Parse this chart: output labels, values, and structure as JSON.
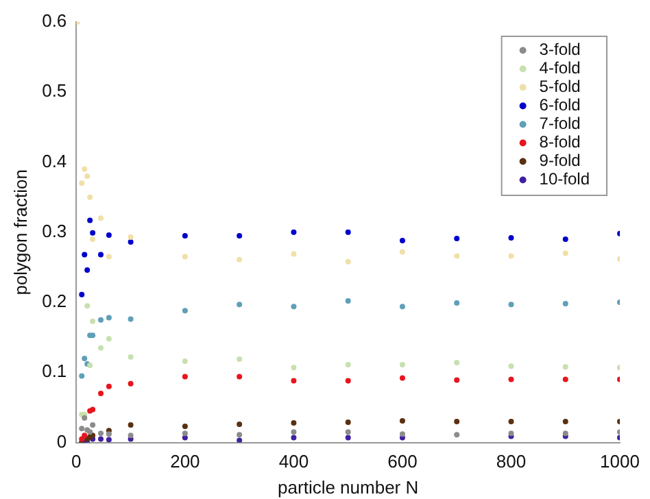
{
  "chart_data": {
    "type": "scatter",
    "xlabel": "particle number N",
    "ylabel": "polygon fraction",
    "x": [
      10,
      15,
      20,
      25,
      30,
      45,
      60,
      100,
      200,
      300,
      400,
      500,
      600,
      700,
      800,
      900,
      1000
    ],
    "series": [
      {
        "name": "3-fold",
        "color": "#8c8c8c",
        "values": [
          0.02,
          0.035,
          0.018,
          0.015,
          0.025,
          0.013,
          0.012,
          0.01,
          0.013,
          0.011,
          0.015,
          0.015,
          0.012,
          0.011,
          0.013,
          0.013,
          0.015
        ]
      },
      {
        "name": "4-fold",
        "color": "#c8e0b0",
        "values": [
          0.04,
          0.04,
          0.195,
          0.11,
          0.173,
          0.135,
          0.148,
          0.122,
          0.116,
          0.119,
          0.107,
          0.111,
          0.111,
          0.114,
          0.109,
          0.108,
          0.107
        ]
      },
      {
        "name": "5-fold",
        "color": "#f0e0a8",
        "x": [
          2,
          10,
          15,
          20,
          25,
          30,
          45,
          60,
          100,
          200,
          300,
          400,
          500,
          600,
          700,
          800,
          900,
          1000
        ],
        "values": [
          0.6,
          0.37,
          0.39,
          0.38,
          0.35,
          0.29,
          0.32,
          0.265,
          0.293,
          0.265,
          0.261,
          0.269,
          0.258,
          0.272,
          0.266,
          0.266,
          0.27,
          0.262
        ]
      },
      {
        "name": "6-fold",
        "color": "#0000cc",
        "values": [
          0.211,
          0.268,
          0.246,
          0.317,
          0.299,
          0.268,
          0.296,
          0.286,
          0.295,
          0.295,
          0.3,
          0.3,
          0.288,
          0.291,
          0.292,
          0.29,
          0.298
        ]
      },
      {
        "name": "7-fold",
        "color": "#5f9fb8",
        "values": [
          0.095,
          0.12,
          0.112,
          0.153,
          0.153,
          0.175,
          0.178,
          0.176,
          0.188,
          0.197,
          0.194,
          0.202,
          0.194,
          0.199,
          0.197,
          0.198,
          0.2
        ]
      },
      {
        "name": "8-fold",
        "color": "#e8141e",
        "values": [
          0.005,
          0.01,
          null,
          0.045,
          0.047,
          0.07,
          0.08,
          0.084,
          0.094,
          0.094,
          0.088,
          0.088,
          0.092,
          0.089,
          0.09,
          0.09,
          0.09
        ]
      },
      {
        "name": "9-fold",
        "color": "#5a3010",
        "values": [
          0,
          null,
          0.005,
          0.008,
          0.01,
          null,
          0.017,
          0.025,
          0.023,
          0.026,
          0.028,
          0.029,
          0.031,
          0.03,
          0.03,
          0.03,
          0.03
        ]
      },
      {
        "name": "10-fold",
        "color": "#4020a0",
        "values": [
          0,
          0,
          0,
          null,
          0.005,
          0.005,
          0.004,
          0.005,
          0.007,
          0.003,
          0.007,
          0.007,
          0.007,
          null,
          0.009,
          0.009,
          0.007
        ]
      }
    ],
    "xlim": [
      0,
      1000
    ],
    "xticks": [
      0,
      200,
      400,
      600,
      800,
      1000
    ],
    "ylim": [
      0,
      0.6
    ],
    "yticks": [
      0,
      0.1,
      0.2,
      0.3,
      0.4,
      0.5,
      0.6
    ],
    "grid": false,
    "legend": "top right",
    "marker": "circle"
  }
}
